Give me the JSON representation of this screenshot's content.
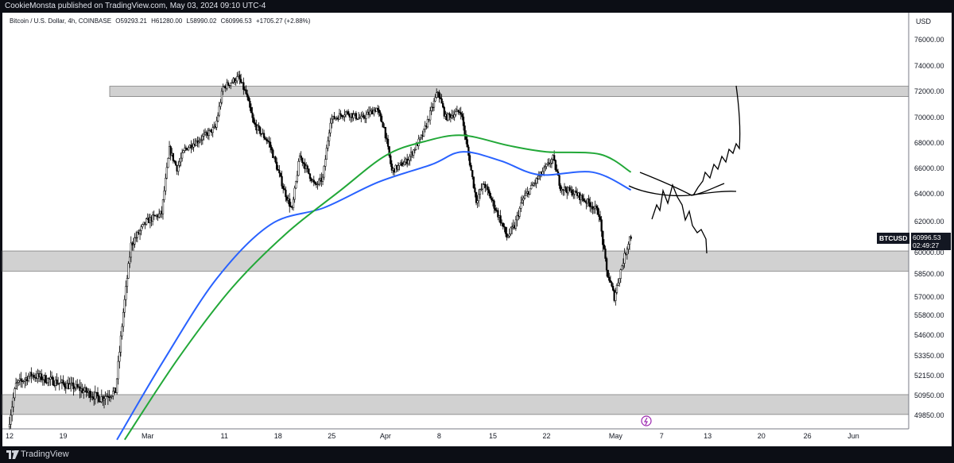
{
  "header": {
    "published_text": "CookieMonsta published on TradingView.com, May 03, 2024 09:10 UTC-4"
  },
  "footer": {
    "brand": "TradingView"
  },
  "legend": {
    "symbol_desc": "Bitcoin / U.S. Dollar, 4h, COINBASE",
    "open": "O59293.21",
    "high": "H61280.00",
    "low": "L58990.02",
    "close": "C60996.53",
    "change": "+1705.27 (+2.88%)"
  },
  "price_tag": {
    "symbol": "BTCUSD",
    "price": "60996.53",
    "countdown": "02:49:27"
  },
  "colors": {
    "up_candle": "#ffffff",
    "down_candle": "#000000",
    "ma_blue": "#2962ff",
    "ma_green": "#22a838",
    "zone_fill": "#d1d1d1",
    "zone_border": "#7f7f7f",
    "drawing": "#000000",
    "header_bg": "#0c0e15"
  },
  "chart_data": {
    "type": "candlestick",
    "currency": "USD",
    "timeframe": "4h",
    "ylim": [
      49000,
      77500
    ],
    "y_ticks": [
      "76000.00",
      "74000.00",
      "72000.00",
      "70000.00",
      "68000.00",
      "66000.00",
      "64000.00",
      "62000.00",
      "60000.00",
      "58500.00",
      "57000.00",
      "55800.00",
      "54600.00",
      "53350.00",
      "52150.00",
      "50950.00",
      "49850.00"
    ],
    "x_ticks": [
      "12",
      "19",
      "Mar",
      "11",
      "18",
      "25",
      "Apr",
      "8",
      "15",
      "22",
      "May",
      "7",
      "13",
      "20",
      "26",
      "Jun"
    ],
    "price_path": [
      [
        "Feb 12",
        49200
      ],
      [
        "Feb 13",
        51600
      ],
      [
        "Feb 15",
        52200
      ],
      [
        "Feb 18",
        51800
      ],
      [
        "Feb 21",
        51400
      ],
      [
        "Feb 24",
        50800
      ],
      [
        "Feb 26",
        51200
      ],
      [
        "Feb 27",
        56000
      ],
      [
        "Feb 28",
        60500
      ],
      [
        "Mar 1",
        62000
      ],
      [
        "Mar 3",
        62600
      ],
      [
        "Mar 4",
        67500
      ],
      [
        "Mar 5",
        66000
      ],
      [
        "Mar 6",
        67500
      ],
      [
        "Mar 8",
        68300
      ],
      [
        "Mar 10",
        69200
      ],
      [
        "Mar 11",
        72300
      ],
      [
        "Mar 13",
        73100
      ],
      [
        "Mar 14",
        71800
      ],
      [
        "Mar 15",
        69500
      ],
      [
        "Mar 17",
        68000
      ],
      [
        "Mar 19",
        64200
      ],
      [
        "Mar 20",
        62800
      ],
      [
        "Mar 21",
        67000
      ],
      [
        "Mar 23",
        64600
      ],
      [
        "Mar 24",
        65200
      ],
      [
        "Mar 25",
        69800
      ],
      [
        "Mar 27",
        70400
      ],
      [
        "Mar 29",
        69900
      ],
      [
        "Mar 31",
        70700
      ],
      [
        "Apr 1",
        69200
      ],
      [
        "Apr 2",
        65800
      ],
      [
        "Apr 4",
        66600
      ],
      [
        "Apr 6",
        68600
      ],
      [
        "Apr 8",
        72000
      ],
      [
        "Apr 9",
        70000
      ],
      [
        "Apr 11",
        70500
      ],
      [
        "Apr 13",
        63500
      ],
      [
        "Apr 14",
        64800
      ],
      [
        "Apr 16",
        62300
      ],
      [
        "Apr 17",
        61000
      ],
      [
        "Apr 18",
        61700
      ],
      [
        "Apr 19",
        63500
      ],
      [
        "Apr 21",
        65200
      ],
      [
        "Apr 23",
        66800
      ],
      [
        "Apr 24",
        64500
      ],
      [
        "Apr 26",
        64000
      ],
      [
        "Apr 28",
        63200
      ],
      [
        "Apr 29",
        62600
      ],
      [
        "Apr 30",
        58700
      ],
      [
        "May 1",
        57000
      ],
      [
        "May 2",
        59100
      ],
      [
        "May 3",
        60996.53
      ]
    ],
    "series": [
      {
        "name": "MA blue",
        "points": [
          [
            "Feb 26",
            48500
          ],
          [
            "Mar 3",
            53000
          ],
          [
            "Mar 10",
            58200
          ],
          [
            "Mar 17",
            61800
          ],
          [
            "Mar 24",
            63000
          ],
          [
            "Mar 31",
            64900
          ],
          [
            "Apr 7",
            66300
          ],
          [
            "Apr 11",
            67300
          ],
          [
            "Apr 16",
            66600
          ],
          [
            "Apr 21",
            65500
          ],
          [
            "Apr 28",
            65700
          ],
          [
            "May 3",
            64300
          ]
        ]
      },
      {
        "name": "MA green",
        "points": [
          [
            "Feb 27",
            48500
          ],
          [
            "Mar 5",
            53200
          ],
          [
            "Mar 12",
            57600
          ],
          [
            "Mar 19",
            61200
          ],
          [
            "Mar 26",
            64200
          ],
          [
            "Apr 1",
            67000
          ],
          [
            "Apr 6",
            68100
          ],
          [
            "Apr 11",
            68600
          ],
          [
            "Apr 17",
            67800
          ],
          [
            "Apr 22",
            67300
          ],
          [
            "Apr 29",
            67100
          ],
          [
            "May 3",
            65700
          ]
        ]
      }
    ],
    "zones": [
      {
        "from": 71600,
        "to": 72400
      },
      {
        "from": 58700,
        "to": 60100
      },
      {
        "from": 49900,
        "to": 51000
      }
    ]
  }
}
